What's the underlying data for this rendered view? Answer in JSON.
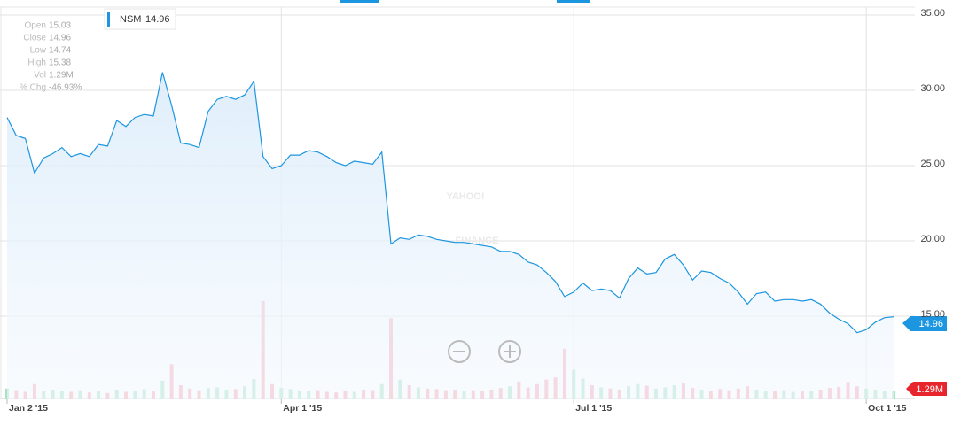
{
  "chart_data": {
    "type": "line",
    "watermark": [
      "YAHOO!",
      "FINANCE"
    ],
    "info": [
      {
        "label": "Open",
        "value": "15.03"
      },
      {
        "label": "Close",
        "value": "14.96"
      },
      {
        "label": "Low",
        "value": "14.74"
      },
      {
        "label": "High",
        "value": "15.38"
      },
      {
        "label": "Vol",
        "value": "1.29M"
      },
      {
        "label": "% Chg",
        "value": "-46.93%"
      }
    ],
    "categories": [
      "Jan 2 '15",
      null,
      null,
      null,
      null,
      null,
      null,
      null,
      null,
      null,
      null,
      null,
      null,
      null,
      null,
      null,
      null,
      null,
      null,
      null,
      null,
      null,
      null,
      null,
      null,
      null,
      null,
      null,
      null,
      null,
      "Apr 1 '15",
      null,
      null,
      null,
      null,
      null,
      null,
      null,
      null,
      null,
      null,
      null,
      null,
      null,
      null,
      null,
      null,
      null,
      null,
      null,
      null,
      null,
      null,
      null,
      null,
      null,
      null,
      null,
      null,
      null,
      null,
      null,
      "Jul 1 '15",
      null,
      null,
      null,
      null,
      null,
      null,
      null,
      null,
      null,
      null,
      null,
      null,
      null,
      null,
      null,
      null,
      null,
      null,
      null,
      null,
      null,
      null,
      null,
      null,
      null,
      null,
      null,
      null,
      null,
      null,
      null,
      "Oct 1 '15",
      null,
      null,
      null
    ],
    "series": [
      {
        "name": "NSM",
        "color": "#1c96e0",
        "values": [
          28.2,
          27.0,
          26.8,
          24.5,
          25.5,
          25.8,
          26.2,
          25.6,
          25.8,
          25.6,
          26.4,
          26.3,
          28.0,
          27.6,
          28.2,
          28.4,
          28.3,
          31.2,
          29.0,
          26.5,
          26.4,
          26.2,
          28.6,
          29.4,
          29.6,
          29.4,
          29.7,
          30.6,
          25.6,
          24.8,
          25.0,
          25.7,
          25.7,
          26.0,
          25.9,
          25.6,
          25.2,
          25.0,
          25.3,
          25.2,
          25.1,
          25.9,
          19.8,
          20.2,
          20.1,
          20.4,
          20.3,
          20.1,
          20.0,
          19.9,
          19.9,
          19.8,
          19.7,
          19.6,
          19.3,
          19.3,
          19.1,
          18.6,
          18.4,
          17.9,
          17.3,
          16.3,
          16.6,
          17.2,
          16.7,
          16.8,
          16.7,
          16.2,
          17.5,
          18.2,
          17.8,
          17.9,
          18.8,
          19.1,
          18.4,
          17.4,
          18.0,
          17.9,
          17.5,
          17.2,
          16.6,
          15.8,
          16.5,
          16.6,
          16.0,
          16.1,
          16.1,
          16.0,
          16.1,
          15.8,
          15.2,
          14.8,
          14.5,
          13.9,
          14.1,
          14.6,
          14.9,
          14.96
        ]
      },
      {
        "name": "Vol",
        "up_color": "#a8e2c4",
        "down_color": "#f7a9b5",
        "values": [
          1.8,
          1.5,
          1.2,
          2.6,
          1.4,
          1.6,
          1.3,
          1.2,
          1.5,
          1.1,
          1.3,
          1.0,
          1.6,
          1.2,
          1.4,
          1.7,
          1.3,
          3.2,
          6.2,
          2.4,
          1.8,
          1.5,
          1.9,
          2.0,
          1.6,
          1.7,
          2.2,
          3.5,
          17.6,
          2.6,
          1.9,
          1.7,
          1.4,
          1.3,
          1.5,
          1.2,
          1.1,
          1.4,
          1.2,
          1.6,
          1.5,
          2.6,
          14.5,
          3.4,
          2.4,
          2.0,
          1.8,
          1.7,
          1.5,
          1.6,
          1.3,
          1.5,
          1.4,
          1.6,
          1.9,
          2.2,
          3.1,
          2.0,
          2.6,
          3.4,
          3.8,
          9.0,
          5.2,
          3.6,
          2.4,
          2.0,
          1.8,
          1.6,
          2.2,
          2.6,
          2.3,
          1.8,
          2.0,
          2.4,
          2.8,
          1.9,
          1.6,
          1.4,
          1.7,
          1.5,
          1.8,
          2.2,
          1.6,
          1.4,
          1.3,
          1.5,
          1.2,
          1.4,
          1.3,
          1.6,
          1.9,
          2.1,
          3.0,
          2.2,
          1.8,
          1.6,
          1.4,
          1.29
        ]
      }
    ],
    "ylim": [
      9.5,
      35.5
    ],
    "yticks": [
      {
        "value": 15,
        "label": "15.00"
      },
      {
        "value": 20,
        "label": "20.00"
      },
      {
        "value": 25,
        "label": "25.00"
      },
      {
        "value": 30,
        "label": "30.00"
      },
      {
        "value": 35,
        "label": "35.00"
      }
    ],
    "grid": true
  }
}
